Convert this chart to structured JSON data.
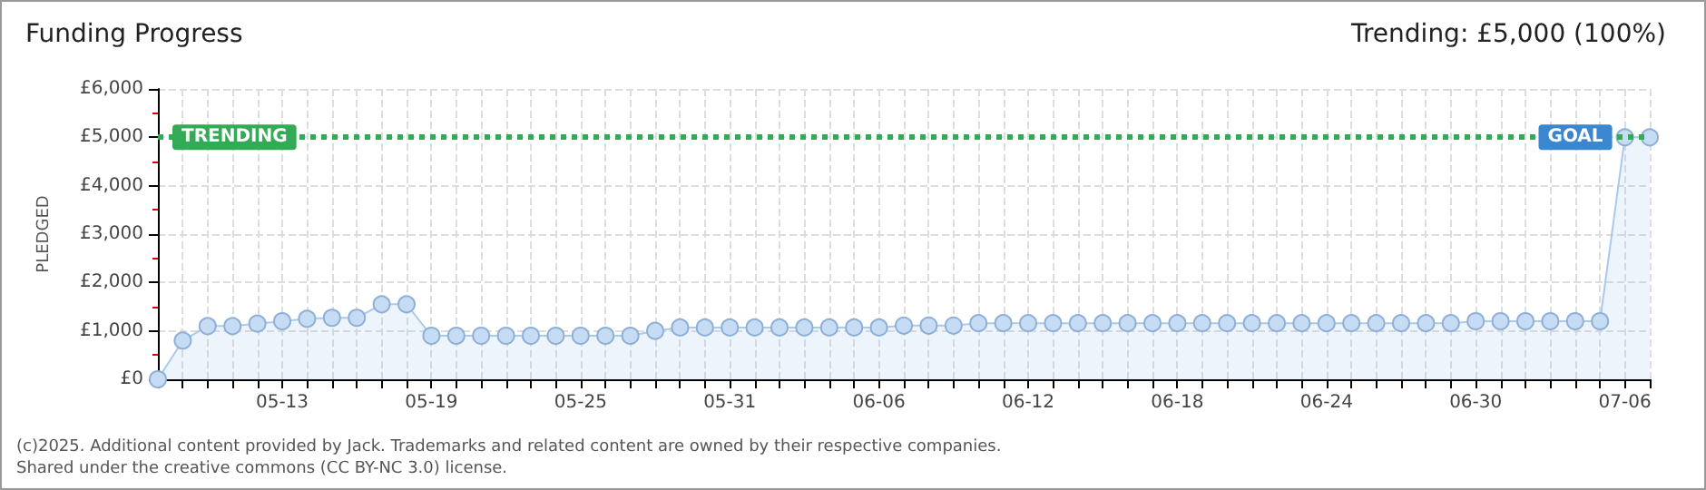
{
  "chart_data": {
    "type": "area",
    "title": "Funding Progress",
    "subtitle": "Trending: £5,000 (100%)",
    "ylabel": "PLEDGED",
    "categories": [
      null,
      null,
      null,
      null,
      null,
      "05-13",
      null,
      null,
      null,
      null,
      null,
      "05-19",
      null,
      null,
      null,
      null,
      null,
      "05-25",
      null,
      null,
      null,
      null,
      null,
      "05-31",
      null,
      null,
      null,
      null,
      null,
      "06-06",
      null,
      null,
      null,
      null,
      null,
      "06-12",
      null,
      null,
      null,
      null,
      null,
      "06-18",
      null,
      null,
      null,
      null,
      null,
      "06-24",
      null,
      null,
      null,
      null,
      null,
      "06-30",
      null,
      null,
      null,
      null,
      null,
      "07-06",
      null
    ],
    "series": [
      {
        "color": "#a9c9ee",
        "values": [
          0,
          800,
          1100,
          1100,
          1150,
          1200,
          1250,
          1270,
          1270,
          1550,
          1550,
          900,
          900,
          900,
          900,
          900,
          900,
          900,
          900,
          900,
          1000,
          1070,
          1070,
          1070,
          1070,
          1070,
          1070,
          1070,
          1070,
          1070,
          1110,
          1110,
          1110,
          1160,
          1160,
          1160,
          1160,
          1160,
          1160,
          1160,
          1160,
          1160,
          1160,
          1160,
          1160,
          1160,
          1160,
          1160,
          1160,
          1160,
          1160,
          1160,
          1160,
          1200,
          1200,
          1200,
          1200,
          1200,
          1200,
          5000,
          5000
        ]
      }
    ],
    "ylim": [
      0,
      6000
    ],
    "yticks": [
      {
        "value": 0,
        "label": "£0"
      },
      {
        "value": 1000,
        "label": "£1,000"
      },
      {
        "value": 2000,
        "label": "£2,000"
      },
      {
        "value": 3000,
        "label": "£3,000"
      },
      {
        "value": 4000,
        "label": "£4,000"
      },
      {
        "value": 5000,
        "label": "£5,000"
      },
      {
        "value": 6000,
        "label": "£6,000"
      }
    ],
    "ref_lines": [
      {
        "axis": "y",
        "value": 5000,
        "label": "TRENDING",
        "color": "#33aa55",
        "line_style": "dotted"
      }
    ],
    "annotations": [
      {
        "text": "GOAL",
        "x": "07-06",
        "y": 5000
      },
      "(c)2025. Additional content provided by Jack. Trademarks and related content are owned by their respective companies.",
      "Shared under the creative commons (CC BY-NC 3.0) license."
    ],
    "grid": true,
    "marker": "circle",
    "line_style": "solid"
  }
}
